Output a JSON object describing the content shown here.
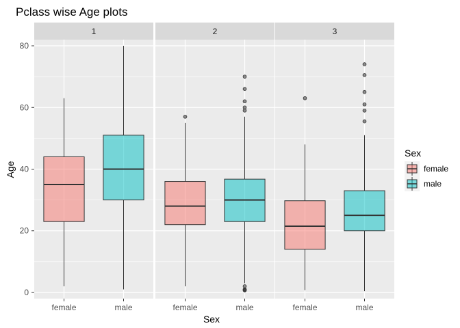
{
  "chart_data": {
    "type": "boxplot",
    "title": "Pclass wise Age plots",
    "xlabel": "Sex",
    "ylabel": "Age",
    "categories": [
      "female",
      "male"
    ],
    "ylim": [
      -2,
      82
    ],
    "yticks": [
      0,
      20,
      40,
      60,
      80
    ],
    "grid": true,
    "colors": {
      "female": "#f8766d",
      "male": "#00bfc4"
    },
    "legend": {
      "title": "Sex",
      "position": "right",
      "entries": [
        "female",
        "male"
      ]
    },
    "facets": [
      {
        "label": "1",
        "boxes": [
          {
            "category": "female",
            "min": 2,
            "q1": 23,
            "median": 35,
            "q3": 44,
            "max": 63,
            "outliers": []
          },
          {
            "category": "male",
            "min": 1,
            "q1": 30,
            "median": 40,
            "q3": 51,
            "max": 80,
            "outliers": []
          }
        ]
      },
      {
        "label": "2",
        "boxes": [
          {
            "category": "female",
            "min": 2,
            "q1": 22,
            "median": 28,
            "q3": 36,
            "max": 55,
            "outliers": [
              57
            ]
          },
          {
            "category": "male",
            "min": 3,
            "q1": 23,
            "median": 30,
            "q3": 36.75,
            "max": 57,
            "outliers": [
              0.67,
              0.83,
              1,
              2,
              59,
              60,
              62,
              66,
              70
            ]
          }
        ]
      },
      {
        "label": "3",
        "boxes": [
          {
            "category": "female",
            "min": 0.75,
            "q1": 14,
            "median": 21.5,
            "q3": 29.75,
            "max": 48,
            "outliers": [
              63
            ]
          },
          {
            "category": "male",
            "min": 0.42,
            "q1": 20,
            "median": 25,
            "q3": 33,
            "max": 51,
            "outliers": [
              55.5,
              59,
              61,
              65,
              70.5,
              74
            ]
          }
        ]
      }
    ]
  }
}
